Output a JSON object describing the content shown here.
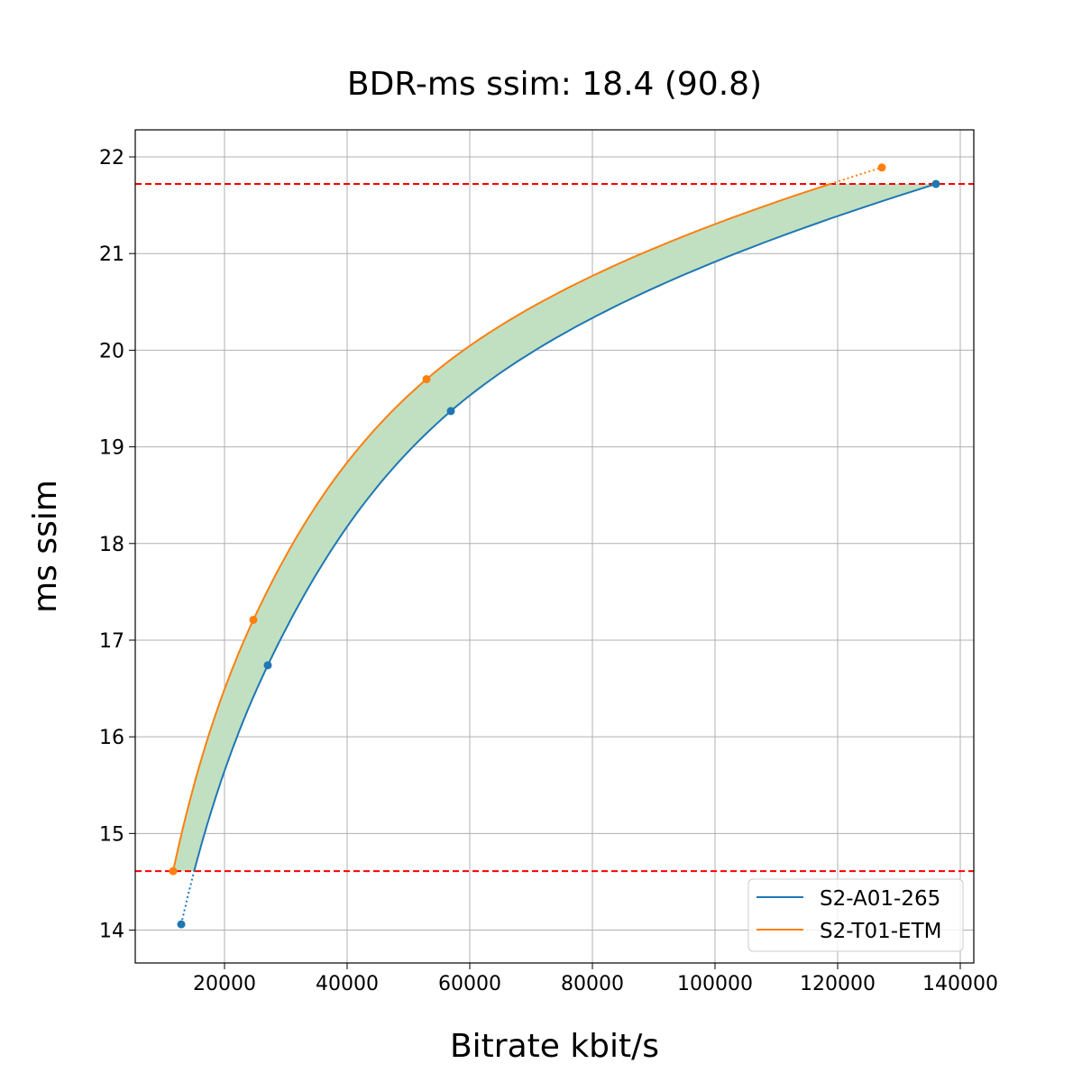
{
  "chart_data": {
    "type": "line",
    "title": "BDR-ms ssim: 18.4 (90.8)",
    "xlabel": "Bitrate kbit/s",
    "ylabel": "ms ssim",
    "xlim": [
      5441,
      142206
    ],
    "ylim": [
      13.66,
      22.28
    ],
    "xticks": [
      20000,
      40000,
      60000,
      80000,
      100000,
      120000,
      140000
    ],
    "yticks": [
      14,
      15,
      16,
      17,
      18,
      19,
      20,
      21,
      22
    ],
    "grid": true,
    "legend_position": "lower-right",
    "series": [
      {
        "name": "S2-A01-265",
        "color": "#1f77b4",
        "x": [
          12941,
          27059,
          56912,
          136029
        ],
        "y": [
          14.06,
          16.74,
          19.37,
          21.72
        ]
      },
      {
        "name": "S2-T01-ETM",
        "color": "#ff7f0e",
        "x": [
          11618,
          24706,
          52941,
          127206
        ],
        "y": [
          14.61,
          17.21,
          19.7,
          21.89
        ]
      }
    ],
    "hlines": {
      "values": [
        14.61,
        21.72
      ],
      "color": "#ff0000",
      "style": "dashed"
    },
    "fill": {
      "between": [
        "S2-A01-265",
        "S2-T01-ETM"
      ],
      "color": "#c1e0c1"
    }
  }
}
